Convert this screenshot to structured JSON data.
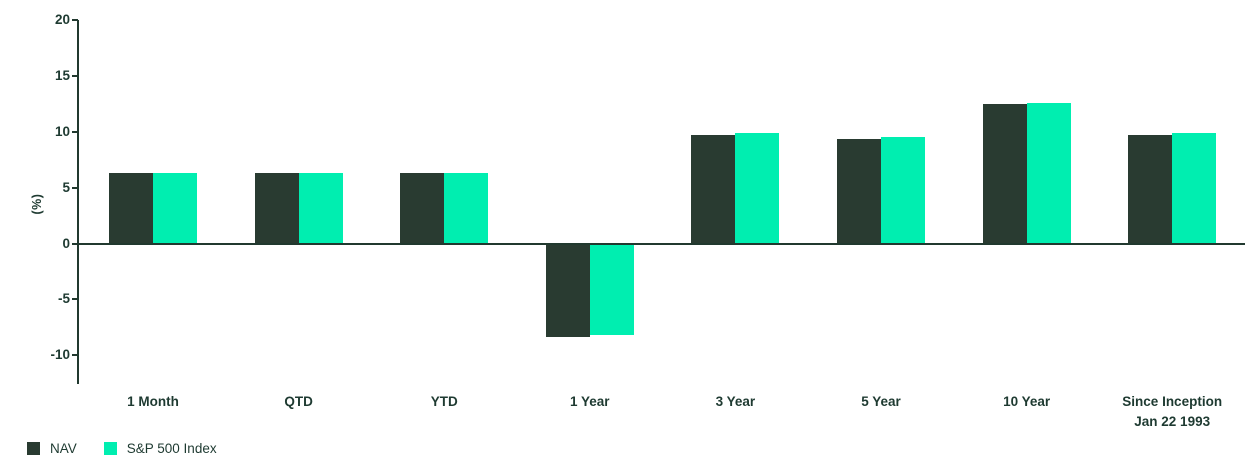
{
  "chart_data": {
    "type": "bar",
    "title": "",
    "categories": [
      "1 Month",
      "QTD",
      "YTD",
      "1 Year",
      "3 Year",
      "5 Year",
      "10 Year",
      "Since Inception Jan 22 1993"
    ],
    "category_lines": [
      [
        "1 Month"
      ],
      [
        "QTD"
      ],
      [
        "YTD"
      ],
      [
        "1 Year"
      ],
      [
        "3 Year"
      ],
      [
        "5 Year"
      ],
      [
        "10 Year"
      ],
      [
        "Since Inception",
        "Jan 22 1993"
      ]
    ],
    "series": [
      {
        "name": "NAV",
        "color": "#293B31",
        "values": [
          6.3,
          6.3,
          6.3,
          -8.4,
          9.7,
          9.4,
          12.5,
          9.7
        ]
      },
      {
        "name": "S&P 500 Index",
        "color": "#00EEB0",
        "values": [
          6.3,
          6.3,
          6.3,
          -8.2,
          9.9,
          9.5,
          12.6,
          9.9
        ]
      }
    ],
    "xlabel": "",
    "ylabel": "(%)",
    "yticks": [
      20,
      15,
      10,
      5,
      0,
      -5,
      -10
    ],
    "ylim": [
      -12.5,
      20
    ],
    "grid": false,
    "legend_position": "bottom-left",
    "axis_color": "#21392F",
    "text_color": "#1E3A31"
  }
}
